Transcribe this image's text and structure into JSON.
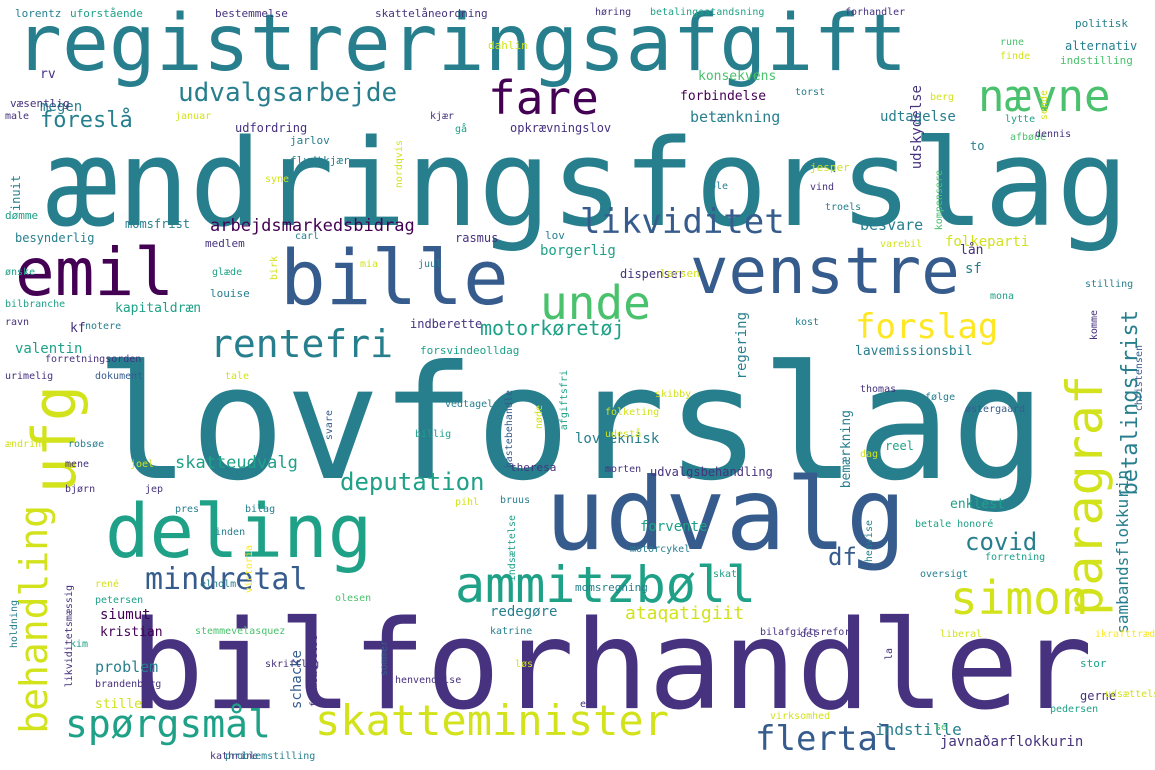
{
  "words": [
    {
      "text": "lovforslag"
    },
    {
      "text": "ændringsforslag"
    },
    {
      "text": "bilforhandler"
    },
    {
      "text": "registreringsafgift"
    },
    {
      "text": "udvalg"
    },
    {
      "text": "deling"
    },
    {
      "text": "bille"
    },
    {
      "text": "venstre"
    },
    {
      "text": "emil"
    },
    {
      "text": "ammitzbøll"
    },
    {
      "text": "skatteminister"
    },
    {
      "text": "spørgsmål"
    },
    {
      "text": "ufg"
    },
    {
      "text": "behandling"
    },
    {
      "text": "simon"
    },
    {
      "text": "paragraf"
    },
    {
      "text": "unde"
    },
    {
      "text": "fare"
    },
    {
      "text": "nævne"
    },
    {
      "text": "likviditet"
    },
    {
      "text": "rentefri"
    },
    {
      "text": "forslag"
    },
    {
      "text": "mindretal"
    },
    {
      "text": "flertal"
    },
    {
      "text": "udvalgsarbejde"
    },
    {
      "text": "deputation"
    },
    {
      "text": "betalingsfrist"
    },
    {
      "text": "covid"
    },
    {
      "text": "df"
    },
    {
      "text": "foreslå"
    },
    {
      "text": "motorkøretøj"
    },
    {
      "text": "arbejdsmarkedsbidrag"
    },
    {
      "text": "sambandsflokkurin"
    },
    {
      "text": "skatteudvalg"
    },
    {
      "text": "ataqatigiit"
    },
    {
      "text": "javnaðarflokkurin"
    },
    {
      "text": "indstille"
    },
    {
      "text": "udskydelse"
    },
    {
      "text": "betænkning"
    },
    {
      "text": "forbindelse"
    },
    {
      "text": "udtagelse"
    },
    {
      "text": "folkeparti"
    },
    {
      "text": "besvare"
    },
    {
      "text": "borgerlig"
    },
    {
      "text": "kapitaldræn"
    },
    {
      "text": "valentin"
    },
    {
      "text": "siumut"
    },
    {
      "text": "kristian"
    },
    {
      "text": "problem"
    },
    {
      "text": "stille"
    },
    {
      "text": "redegøre"
    },
    {
      "text": "lovteknisk"
    },
    {
      "text": "regering"
    },
    {
      "text": "enklest"
    },
    {
      "text": "megen"
    },
    {
      "text": "sf"
    },
    {
      "text": "lån"
    },
    {
      "text": "kf"
    },
    {
      "text": "rv"
    },
    {
      "text": "konsekvens"
    },
    {
      "text": "bemærkning"
    },
    {
      "text": "lavemissionsbil"
    },
    {
      "text": "schacke"
    },
    {
      "text": "udvalgsbehandling"
    },
    {
      "text": "indberette"
    },
    {
      "text": "forsvindeolldag"
    },
    {
      "text": "momsfrist"
    },
    {
      "text": "besynderlig"
    },
    {
      "text": "rasmus"
    },
    {
      "text": "reel"
    },
    {
      "text": "forvente"
    },
    {
      "text": "opkrævningslov"
    },
    {
      "text": "udfordring"
    },
    {
      "text": "skattelåneordning"
    },
    {
      "text": "bestemmelse"
    },
    {
      "text": "uforstående"
    },
    {
      "text": "lorentz"
    },
    {
      "text": "høring"
    },
    {
      "text": "betalingsstandsning"
    },
    {
      "text": "forhandler"
    },
    {
      "text": "politisk"
    },
    {
      "text": "alternativ"
    },
    {
      "text": "indstilling"
    },
    {
      "text": "dahlin"
    },
    {
      "text": "rune"
    },
    {
      "text": "finde"
    },
    {
      "text": "torst"
    },
    {
      "text": "væsentlig"
    },
    {
      "text": "male"
    },
    {
      "text": "januar"
    },
    {
      "text": "kjær"
    },
    {
      "text": "gå"
    },
    {
      "text": "inuit"
    },
    {
      "text": "nordqvis"
    },
    {
      "text": "jarlov"
    },
    {
      "text": "flydtkjær"
    },
    {
      "text": "syne"
    },
    {
      "text": "to"
    },
    {
      "text": "jesper"
    },
    {
      "text": "vind"
    },
    {
      "text": "lytte"
    },
    {
      "text": "afbøde"
    },
    {
      "text": "dennis"
    },
    {
      "text": "berg"
    },
    {
      "text": "sende"
    },
    {
      "text": "kompensere"
    },
    {
      "text": "troels"
    },
    {
      "text": "ole"
    },
    {
      "text": "dømme"
    },
    {
      "text": "medlem"
    },
    {
      "text": "carl"
    },
    {
      "text": "ønske"
    },
    {
      "text": "glæde"
    },
    {
      "text": "louise"
    },
    {
      "text": "birk"
    },
    {
      "text": "mia"
    },
    {
      "text": "juul"
    },
    {
      "text": "lov"
    },
    {
      "text": "dispenser"
    },
    {
      "text": "larsen"
    },
    {
      "text": "varebil"
    },
    {
      "text": "mona"
    },
    {
      "text": "stilling"
    },
    {
      "text": "bilbranche"
    },
    {
      "text": "ravn"
    },
    {
      "text": "notere"
    },
    {
      "text": "forretningsorden"
    },
    {
      "text": "urimelig"
    },
    {
      "text": "dokument"
    },
    {
      "text": "tale"
    },
    {
      "text": "kost"
    },
    {
      "text": "komme"
    },
    {
      "text": "christensen"
    },
    {
      "text": "skibby"
    },
    {
      "text": "thomas"
    },
    {
      "text": "følge"
    },
    {
      "text": "folketing"
    },
    {
      "text": "udestå"
    },
    {
      "text": "østergaard"
    },
    {
      "text": "afgiftsfri"
    },
    {
      "text": "hastebehandle"
    },
    {
      "text": "vedtagelse"
    },
    {
      "text": "billig"
    },
    {
      "text": "svare"
    },
    {
      "text": "nøde"
    },
    {
      "text": "ændring"
    },
    {
      "text": "robsøe"
    },
    {
      "text": "mene"
    },
    {
      "text": "joel"
    },
    {
      "text": "bjørn"
    },
    {
      "text": "jep"
    },
    {
      "text": "pres"
    },
    {
      "text": "bilag"
    },
    {
      "text": "theresa"
    },
    {
      "text": "morten"
    },
    {
      "text": "dag"
    },
    {
      "text": "indsættelse"
    },
    {
      "text": "pihl"
    },
    {
      "text": "bruus"
    },
    {
      "text": "henvise"
    },
    {
      "text": "betale honoré"
    },
    {
      "text": "inden"
    },
    {
      "text": "victoria"
    },
    {
      "text": "motorcykel"
    },
    {
      "text": "oversigt"
    },
    {
      "text": "likviditetsmæssig"
    },
    {
      "text": "rené"
    },
    {
      "text": "petersen"
    },
    {
      "text": "elholm"
    },
    {
      "text": "olesen"
    },
    {
      "text": "momsregning"
    },
    {
      "text": "skat"
    },
    {
      "text": "forretning"
    },
    {
      "text": "holdning"
    },
    {
      "text": "stemmevelasquez"
    },
    {
      "text": "katrine"
    },
    {
      "text": "del"
    },
    {
      "text": "bilafgiftsreform"
    },
    {
      "text": "liberal"
    },
    {
      "text": "ikrafttrædelse"
    },
    {
      "text": "kim"
    },
    {
      "text": "skriftlig"
    },
    {
      "text": "brandenborg"
    },
    {
      "text": "fremsættelse"
    },
    {
      "text": "sommer"
    },
    {
      "text": "løs"
    },
    {
      "text": "henvendelse"
    },
    {
      "text": "stor"
    },
    {
      "text": "la"
    },
    {
      "text": "el"
    },
    {
      "text": "gerne"
    },
    {
      "text": "udsættelse"
    },
    {
      "text": "pedersen"
    },
    {
      "text": "virksomhed"
    },
    {
      "text": "se"
    },
    {
      "text": "kathrine"
    },
    {
      "text": "problemstilling"
    }
  ],
  "colors": {
    "background": "#ffffff",
    "palette": [
      "#440154",
      "#46327e",
      "#365c8d",
      "#277f8e",
      "#1fa187",
      "#4ac16d",
      "#a0da39",
      "#d2e21b",
      "#fde725"
    ]
  }
}
